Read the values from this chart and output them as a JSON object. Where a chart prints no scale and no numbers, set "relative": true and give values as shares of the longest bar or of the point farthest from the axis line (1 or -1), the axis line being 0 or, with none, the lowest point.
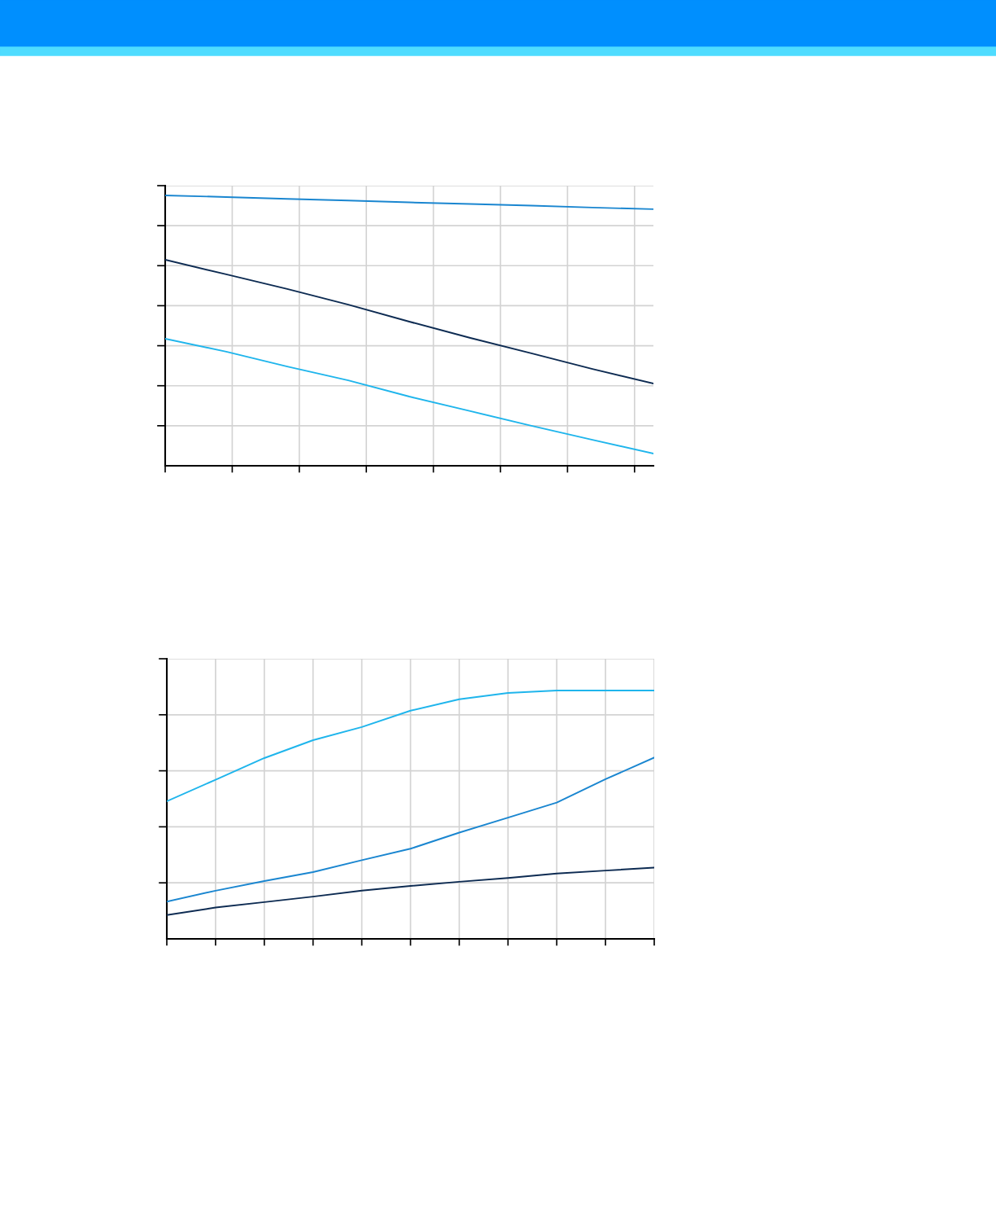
{
  "chart_data": [
    {
      "type": "line",
      "relative": true,
      "grid": true,
      "marker": "none",
      "line_style": "solid",
      "categories": [
        null,
        null,
        null,
        null,
        null,
        null,
        null,
        null,
        null
      ],
      "series": [
        {
          "color": "#1a86d0",
          "values": [
            1.0,
            0.994,
            0.987,
            0.981,
            0.974,
            0.968,
            0.962,
            0.955,
            0.949
          ]
        },
        {
          "color": "#0d2b52",
          "values": [
            0.762,
            0.708,
            0.654,
            0.596,
            0.533,
            0.473,
            0.416,
            0.358,
            0.304
          ]
        },
        {
          "color": "#1fb5ec",
          "values": [
            0.47,
            0.422,
            0.367,
            0.316,
            0.256,
            0.202,
            0.148,
            0.096,
            0.045
          ]
        }
      ]
    },
    {
      "type": "line",
      "relative": true,
      "grid": true,
      "marker": "none",
      "line_style": "solid",
      "categories": [
        null,
        null,
        null,
        null,
        null,
        null,
        null,
        null,
        null,
        null,
        null
      ],
      "series": [
        {
          "color": "#1fb5ec",
          "values": [
            0.554,
            0.641,
            0.728,
            0.8,
            0.853,
            0.919,
            0.965,
            0.99,
            1.0,
            1.0,
            1.0
          ]
        },
        {
          "color": "#1a86d0",
          "values": [
            0.15,
            0.194,
            0.233,
            0.269,
            0.317,
            0.363,
            0.428,
            0.488,
            0.549,
            0.643,
            0.73
          ]
        },
        {
          "color": "#0d2b52",
          "values": [
            0.096,
            0.126,
            0.148,
            0.17,
            0.194,
            0.213,
            0.23,
            0.245,
            0.263,
            0.275,
            0.287
          ]
        }
      ]
    }
  ]
}
